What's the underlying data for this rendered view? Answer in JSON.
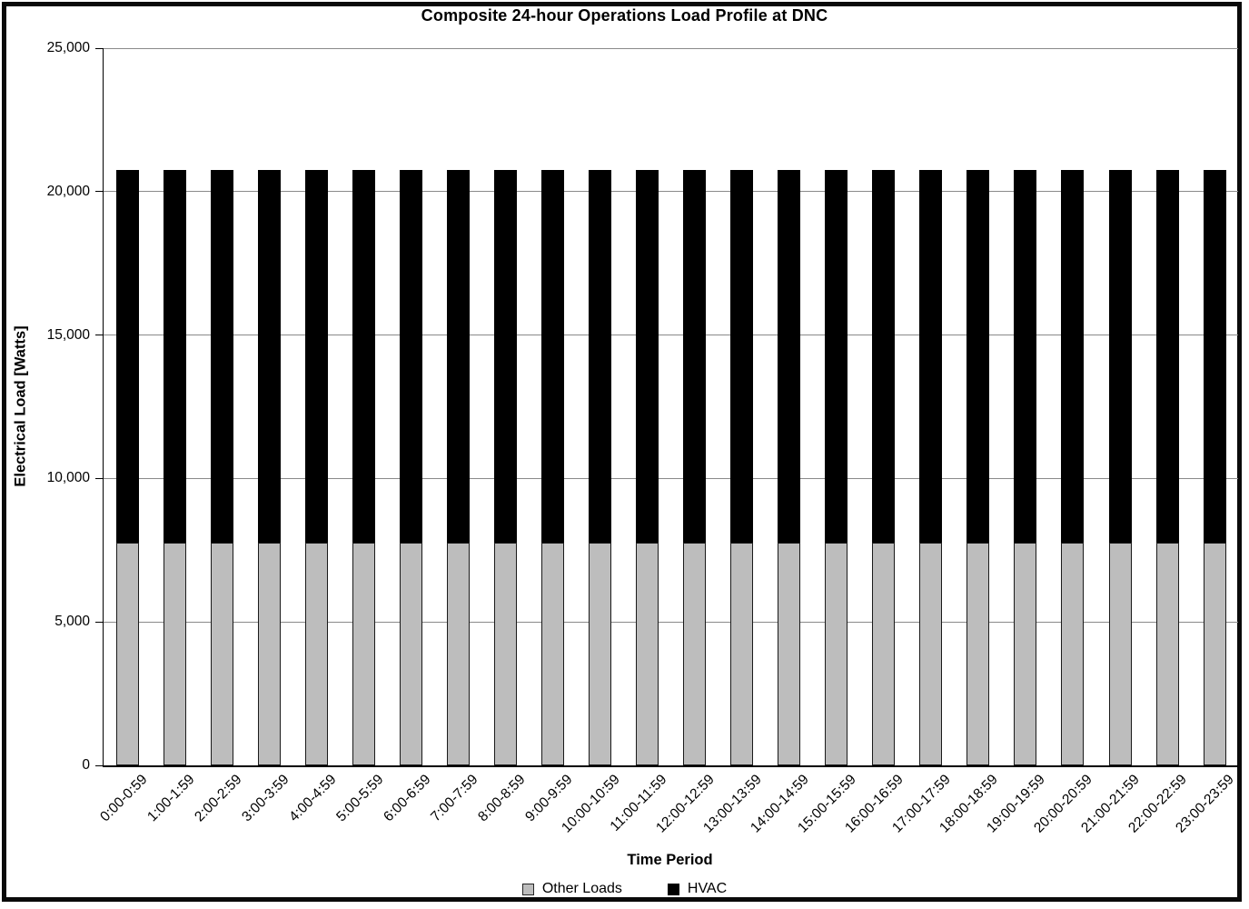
{
  "page": {
    "background": "#ffffff",
    "frame_border_color": "#0a0a0a",
    "gridline_color": "#8a8a8a",
    "axis_color": "#000000"
  },
  "chart_data": {
    "type": "bar",
    "stacked": true,
    "title": "Composite 24-hour Operations Load Profile at DNC",
    "xlabel": "Time Period",
    "ylabel": "Electrical Load [Watts]",
    "ylim": [
      0,
      25000
    ],
    "ytick_interval": 5000,
    "yticks": [
      0,
      5000,
      10000,
      15000,
      20000,
      25000
    ],
    "ytick_labels": [
      "0",
      "5,000",
      "10,000",
      "15,000",
      "20,000",
      "25,000"
    ],
    "grid": true,
    "legend_position": "bottom",
    "categories": [
      "0:00-0:59",
      "1:00-1:59",
      "2:00-2:59",
      "3:00-3:59",
      "4:00-4:59",
      "5:00-5:59",
      "6:00-6:59",
      "7:00-7:59",
      "8:00-8:59",
      "9:00-9:59",
      "10:00-10:59",
      "11:00-11:59",
      "12:00-12:59",
      "13:00-13:59",
      "14:00-14:59",
      "15:00-15:59",
      "16:00-16:59",
      "17:00-17:59",
      "18:00-18:59",
      "19:00-19:59",
      "20:00-20:59",
      "21:00-21:59",
      "22:00-22:59",
      "23:00-23:59"
    ],
    "series": [
      {
        "name": "Other Loads",
        "color": "#bdbdbd",
        "border_color": "#1a1a1a",
        "values": [
          7750,
          7750,
          7750,
          7750,
          7750,
          7750,
          7750,
          7750,
          7750,
          7750,
          7750,
          7750,
          7750,
          7750,
          7750,
          7750,
          7750,
          7750,
          7750,
          7750,
          7750,
          7750,
          7750,
          7750
        ]
      },
      {
        "name": "HVAC",
        "color": "#000000",
        "border_color": "#000000",
        "values": [
          13000,
          13000,
          13000,
          13000,
          13000,
          13000,
          13000,
          13000,
          13000,
          13000,
          13000,
          13000,
          13000,
          13000,
          13000,
          13000,
          13000,
          13000,
          13000,
          13000,
          13000,
          13000,
          13000,
          13000
        ]
      }
    ],
    "total_per_hour": 20750
  }
}
